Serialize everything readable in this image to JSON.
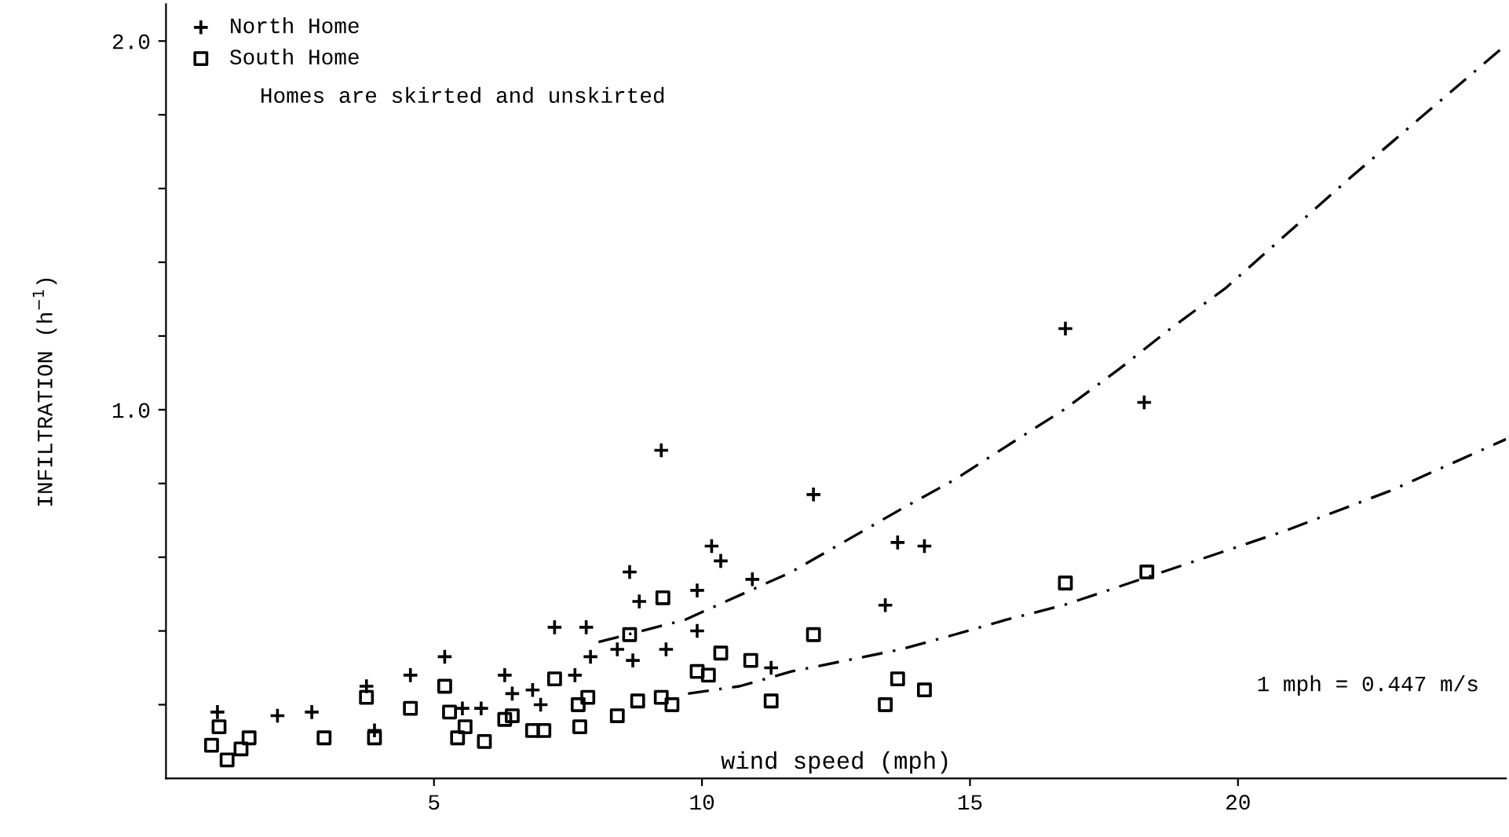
{
  "chart_data": {
    "type": "scatter",
    "xlabel": "wind speed (mph)",
    "ylabel": "INFILTRATION (h$^{−1}$)",
    "xlim": [
      0,
      25
    ],
    "ylim": [
      0,
      2.1
    ],
    "xticks": [
      5,
      10,
      15,
      20
    ],
    "yticks": [
      {
        "value": 0.2,
        "label": null
      },
      {
        "value": 0.4,
        "label": null
      },
      {
        "value": 0.6,
        "label": null
      },
      {
        "value": 0.8,
        "label": null
      },
      {
        "value": 1.0,
        "label": "1.0"
      },
      {
        "value": 1.2,
        "label": null
      },
      {
        "value": 1.4,
        "label": null
      },
      {
        "value": 1.6,
        "label": null
      },
      {
        "value": 1.8,
        "label": null
      },
      {
        "value": 2.0,
        "label": "2.0"
      }
    ],
    "grid": false,
    "legend": "top left",
    "annotations": [
      "Homes are skirted and unskirted",
      "1 mph = 0.447 m/s"
    ],
    "series": [
      {
        "name": "North Home",
        "color": "#000000",
        "marker": "cross",
        "x": [
          0.96,
          2.08,
          2.72,
          3.74,
          3.89,
          4.56,
          5.2,
          5.53,
          5.88,
          6.32,
          6.46,
          6.84,
          6.99,
          7.25,
          7.63,
          7.84,
          7.92,
          8.42,
          8.65,
          8.71,
          8.83,
          9.24,
          9.33,
          9.91,
          9.91,
          10.18,
          10.35,
          10.94,
          11.29,
          12.08,
          13.42,
          13.65,
          14.15,
          16.78,
          18.25
        ],
        "values": [
          0.18,
          0.17,
          0.18,
          0.25,
          0.13,
          0.28,
          0.33,
          0.19,
          0.19,
          0.28,
          0.23,
          0.24,
          0.2,
          0.41,
          0.28,
          0.41,
          0.33,
          0.35,
          0.56,
          0.32,
          0.48,
          0.89,
          0.35,
          0.51,
          0.4,
          0.63,
          0.59,
          0.54,
          0.3,
          0.77,
          0.47,
          0.64,
          0.63,
          1.22,
          1.02
        ]
      },
      {
        "name": "South Home",
        "color": "#000000",
        "marker": "square",
        "x": [
          0.85,
          0.99,
          1.14,
          1.4,
          1.55,
          2.95,
          3.74,
          3.89,
          4.56,
          5.2,
          5.29,
          5.44,
          5.58,
          5.94,
          6.32,
          6.46,
          6.84,
          7.05,
          7.25,
          7.69,
          7.72,
          7.87,
          8.42,
          8.65,
          8.8,
          9.24,
          9.27,
          9.44,
          9.91,
          10.12,
          10.35,
          10.91,
          11.29,
          12.08,
          13.42,
          13.65,
          14.15,
          16.78,
          18.3
        ],
        "values": [
          0.09,
          0.14,
          0.05,
          0.08,
          0.11,
          0.11,
          0.22,
          0.11,
          0.19,
          0.25,
          0.18,
          0.11,
          0.14,
          0.1,
          0.16,
          0.17,
          0.13,
          0.13,
          0.27,
          0.2,
          0.14,
          0.22,
          0.17,
          0.39,
          0.21,
          0.22,
          0.49,
          0.2,
          0.29,
          0.28,
          0.34,
          0.32,
          0.21,
          0.39,
          0.2,
          0.27,
          0.24,
          0.53,
          0.56
        ]
      },
      {
        "type": "line",
        "color": "#000000",
        "line_style": "dashed",
        "x": [
          8.07,
          9.68,
          11.67,
          13.71,
          14.71,
          15.67,
          16.75,
          17.78,
          18.74,
          19.77,
          22.1,
          25.0
        ],
        "values": [
          0.37,
          0.43,
          0.56,
          0.73,
          0.81,
          0.9,
          1.0,
          1.11,
          1.22,
          1.33,
          1.63,
          1.99
        ]
      },
      {
        "type": "line",
        "color": "#000000",
        "line_style": "dashed",
        "x": [
          9.74,
          10.7,
          11.67,
          13.71,
          14.71,
          15.67,
          16.75,
          18.8,
          20.85,
          22.84,
          25.0
        ],
        "values": [
          0.23,
          0.25,
          0.29,
          0.35,
          0.39,
          0.43,
          0.47,
          0.57,
          0.67,
          0.78,
          0.92
        ]
      }
    ]
  }
}
